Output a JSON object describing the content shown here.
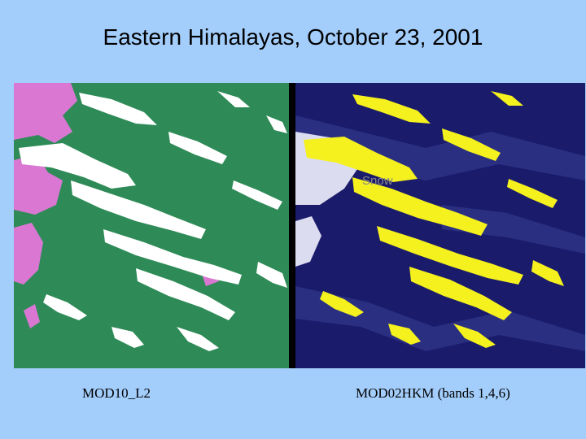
{
  "slide": {
    "title": "Eastern Himalayas, October 23, 2001"
  },
  "left_panel": {
    "caption": "MOD10_L2",
    "colors": {
      "land": "#2e8b57",
      "snow": "#ffffff",
      "cloud": "#d977d3"
    }
  },
  "right_panel": {
    "caption": "MOD02HKM (bands 1,4,6)",
    "annotation": "Snow",
    "colors": {
      "background": "#1b1b6b",
      "snow": "#f4f11e",
      "cloud": "#dcdcf0"
    }
  }
}
